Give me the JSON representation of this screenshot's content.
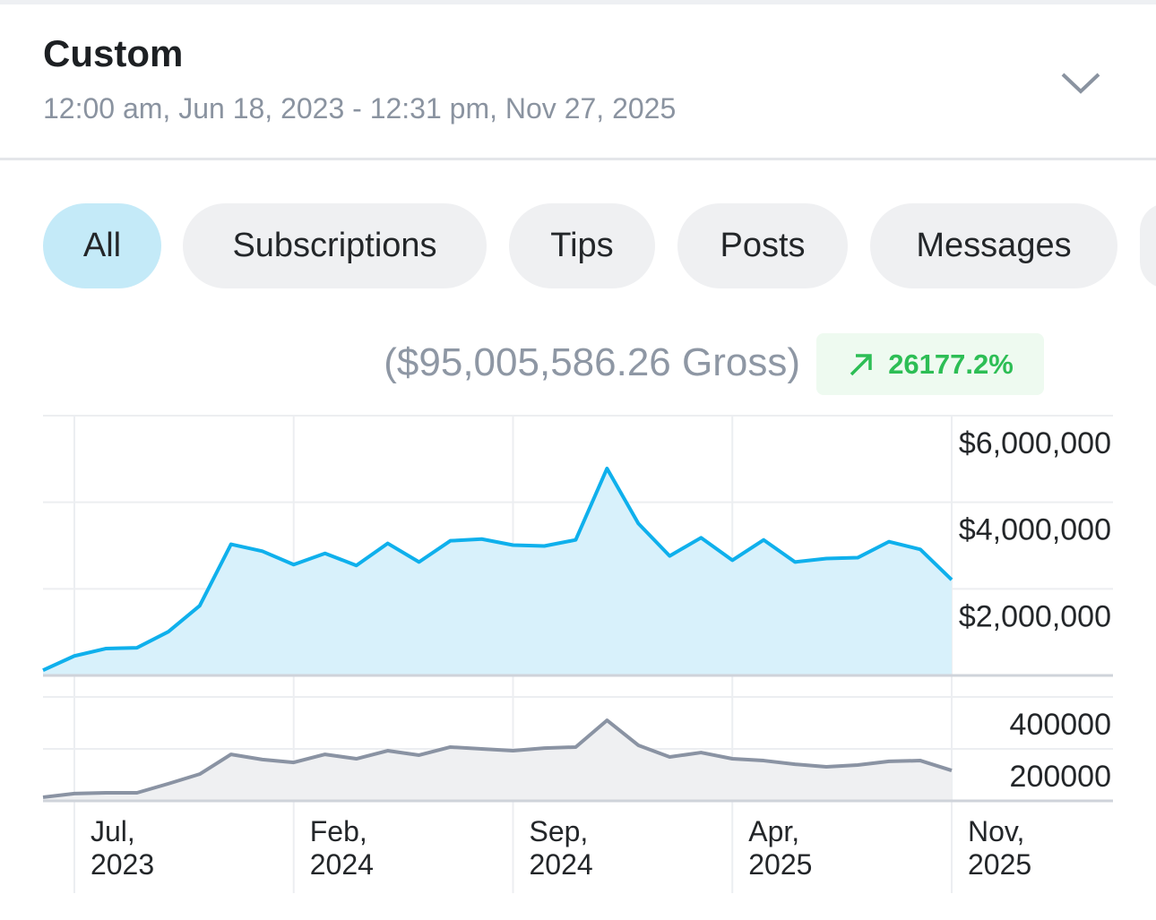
{
  "header": {
    "title": "Custom",
    "date_range": "12:00 am, Jun 18, 2023 - 12:31 pm, Nov 27, 2025"
  },
  "tabs": [
    "All",
    "Subscriptions",
    "Tips",
    "Posts",
    "Messages"
  ],
  "summary": {
    "gross": "($95,005,586.26 Gross)",
    "change": "26177.2%"
  },
  "chart_data": [
    {
      "type": "area",
      "color": "#0fb0ec",
      "fill": "#d8f1fb",
      "values": [
        120000,
        450000,
        620000,
        640000,
        1010000,
        1610000,
        3030000,
        2870000,
        2560000,
        2820000,
        2540000,
        3050000,
        2620000,
        3110000,
        3150000,
        3010000,
        2990000,
        3130000,
        4780000,
        3510000,
        2760000,
        3180000,
        2660000,
        3130000,
        2620000,
        2700000,
        2720000,
        3090000,
        2910000,
        2210000
      ],
      "ylim": [
        0,
        6000000
      ],
      "yticks": [
        {
          "value": 2000000,
          "label": "$2,000,000"
        },
        {
          "value": 4000000,
          "label": "$4,000,000"
        },
        {
          "value": 6000000,
          "label": "$6,000,000"
        }
      ],
      "grid": true
    },
    {
      "type": "area",
      "color": "#8a93a3",
      "fill": "#eff0f2",
      "categories": [
        null,
        "Jul, 2023",
        null,
        null,
        null,
        null,
        null,
        null,
        "Feb, 2024",
        null,
        null,
        null,
        null,
        null,
        null,
        "Sep, 2024",
        null,
        null,
        null,
        null,
        null,
        null,
        "Apr, 2025",
        null,
        null,
        null,
        null,
        null,
        null,
        "Nov, 2025"
      ],
      "values": [
        14000,
        28000,
        31000,
        31000,
        66000,
        103000,
        179000,
        159000,
        148000,
        179000,
        162000,
        193000,
        176000,
        207000,
        200000,
        193000,
        203000,
        207000,
        310000,
        214000,
        169000,
        186000,
        162000,
        155000,
        141000,
        131000,
        138000,
        152000,
        155000,
        117000
      ],
      "ylim": [
        0,
        400000
      ],
      "yticks": [
        200000,
        400000
      ],
      "grid": true
    }
  ]
}
